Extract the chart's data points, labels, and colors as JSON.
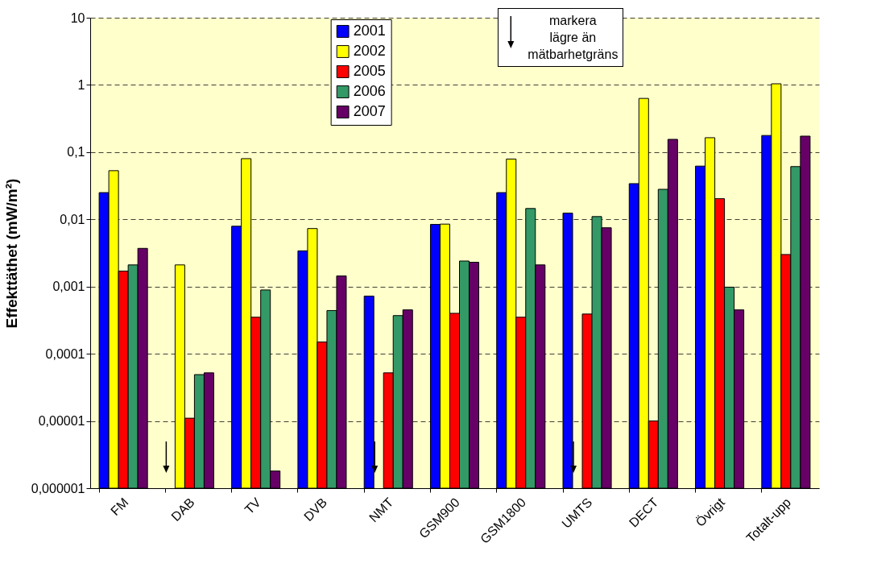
{
  "chart_data": {
    "type": "bar",
    "ylabel": "Effekttäthet (mW/m²)",
    "categories": [
      "FM",
      "DAB",
      "TV",
      "DVB",
      "NMT",
      "GSM900",
      "GSM1800",
      "UMTS",
      "DECT",
      "Övrigt",
      "Totalt-upp"
    ],
    "series": [
      {
        "name": "2001",
        "color": "#0000ff",
        "values": [
          0.025,
          null,
          0.0079,
          0.0034,
          0.00072,
          0.0084,
          0.025,
          0.0124,
          0.034,
          0.062,
          0.177
        ]
      },
      {
        "name": "2002",
        "color": "#ffff00",
        "values": [
          0.053,
          0.0021,
          0.08,
          0.0073,
          null,
          0.0085,
          0.079,
          null,
          0.63,
          0.164,
          1.04
        ]
      },
      {
        "name": "2005",
        "color": "#ff0000",
        "values": [
          0.0017,
          1.1e-05,
          0.00035,
          0.00015,
          5.2e-05,
          0.0004,
          0.00035,
          0.00039,
          1e-05,
          0.0203,
          0.003
        ]
      },
      {
        "name": "2006",
        "color": "#339966",
        "values": [
          0.0021,
          4.9e-05,
          0.00089,
          0.00044,
          0.00037,
          0.0024,
          0.0145,
          0.011,
          0.028,
          0.00098,
          0.061
        ]
      },
      {
        "name": "2007",
        "color": "#660066",
        "values": [
          0.0037,
          5.2e-05,
          1.8e-06,
          0.00144,
          0.00045,
          0.0023,
          0.0021,
          0.0075,
          0.155,
          0.00045,
          0.173
        ]
      }
    ],
    "log": "y",
    "ylim": [
      1e-06,
      10
    ],
    "yticks": [
      {
        "value": 1e-06,
        "label": "0,000001"
      },
      {
        "value": 1e-05,
        "label": "0,00001"
      },
      {
        "value": 0.0001,
        "label": "0,0001"
      },
      {
        "value": 0.001,
        "label": "0,001"
      },
      {
        "value": 0.01,
        "label": "0,01"
      },
      {
        "value": 0.1,
        "label": "0,1"
      },
      1,
      10
    ],
    "grid": "y",
    "legend": "top",
    "annotations": [
      "markera\nlägre än\nmätbarhetgräns"
    ]
  }
}
